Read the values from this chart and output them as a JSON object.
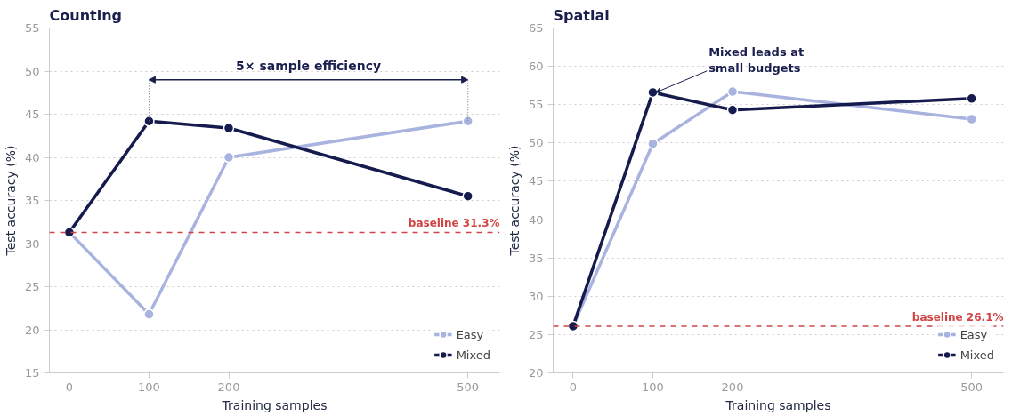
{
  "chart_data": [
    {
      "type": "line",
      "title": "Counting",
      "xlabel": "Training samples",
      "ylabel": "Test accuracy (%)",
      "x": [
        0,
        100,
        200,
        500
      ],
      "xlim": [
        -25,
        540
      ],
      "xticks": [
        0,
        100,
        200,
        500
      ],
      "ylim": [
        15,
        55
      ],
      "yticks": [
        15,
        20,
        25,
        30,
        35,
        40,
        45,
        50,
        55
      ],
      "grid": "y",
      "legend": "bottom right",
      "marker": "circle",
      "line_style": "solid",
      "series": [
        {
          "name": "Easy",
          "color": "#a8b3e0",
          "values": [
            31.3,
            21.8,
            40.0,
            44.2
          ]
        },
        {
          "name": "Mixed",
          "color": "#161b4d",
          "values": [
            31.3,
            44.2,
            43.4,
            35.5
          ]
        }
      ],
      "ref_lines": [
        {
          "axis": "y",
          "value": 31.3,
          "label": "baseline 31.3%",
          "color": "#d04444",
          "line_style": "dashed"
        }
      ],
      "annotations": [
        "5× sample efficiency"
      ]
    },
    {
      "type": "line",
      "title": "Spatial",
      "xlabel": "Training samples",
      "ylabel": "Test accuracy (%)",
      "x": [
        0,
        100,
        200,
        500
      ],
      "xlim": [
        -25,
        540
      ],
      "xticks": [
        0,
        100,
        200,
        500
      ],
      "ylim": [
        20,
        65
      ],
      "yticks": [
        20,
        25,
        30,
        35,
        40,
        45,
        50,
        55,
        60,
        65
      ],
      "grid": "y",
      "legend": "bottom right",
      "marker": "circle",
      "line_style": "solid",
      "series": [
        {
          "name": "Easy",
          "color": "#a8b3e0",
          "values": [
            26.1,
            49.9,
            56.7,
            53.1
          ]
        },
        {
          "name": "Mixed",
          "color": "#161b4d",
          "values": [
            26.1,
            56.6,
            54.3,
            55.8
          ]
        }
      ],
      "ref_lines": [
        {
          "axis": "y",
          "value": 26.1,
          "label": "baseline 26.1%",
          "color": "#d04444",
          "line_style": "dashed"
        }
      ],
      "annotations": [
        {
          "text": "Mixed leads at\nsmall budgets",
          "x": 100,
          "y": 56.6
        }
      ]
    }
  ]
}
